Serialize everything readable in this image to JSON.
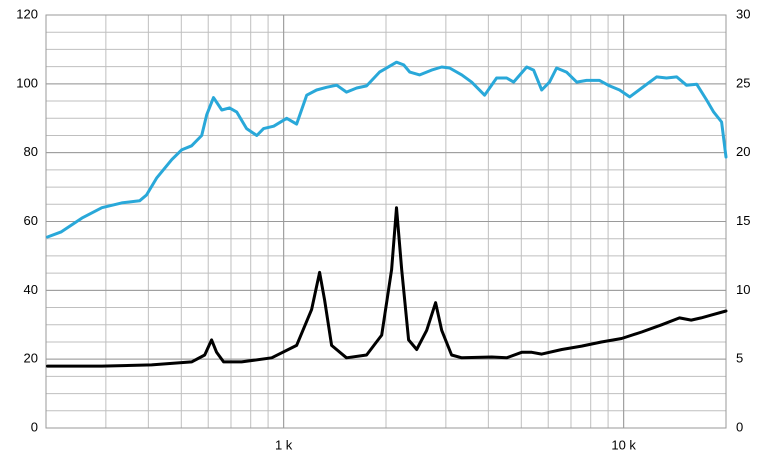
{
  "chart_data": {
    "type": "line",
    "xlog": true,
    "grid": true,
    "y_minor_step": 5,
    "xlim": [
      200,
      20000
    ],
    "xticks": [
      {
        "value": 1000,
        "label": "1 k"
      },
      {
        "value": 10000,
        "label": "10 k"
      }
    ],
    "ylim": [
      0,
      120
    ],
    "yticks": [
      0,
      20,
      40,
      60,
      80,
      100,
      120
    ],
    "y2lim": [
      0,
      30
    ],
    "y2ticks": [
      0,
      5,
      10,
      15,
      20,
      25,
      30
    ],
    "series": [
      {
        "color": "#29a8d9",
        "axis": "y",
        "x": [
          202,
          222,
          255,
          292,
          334,
          377,
          395,
          423,
          469,
          501,
          536,
          574,
          594,
          622,
          658,
          693,
          728,
          778,
          834,
          873,
          935,
          1021,
          1092,
          1169,
          1250,
          1337,
          1432,
          1531,
          1640,
          1754,
          1914,
          2148,
          2254,
          2350,
          2512,
          2723,
          2917,
          3076,
          3342,
          3572,
          3899,
          4229,
          4529,
          4745,
          5186,
          5433,
          5741,
          6053,
          6351,
          6792,
          7278,
          7780,
          8492,
          9095,
          9727,
          10420,
          11300,
          12500,
          13370,
          14320,
          15310,
          16400,
          17540,
          18400,
          19410,
          20000
        ],
        "values": [
          55.5,
          57,
          61,
          64,
          65.4,
          66,
          67.7,
          72.6,
          78,
          80.8,
          82,
          85,
          91,
          96,
          92.4,
          93,
          91.8,
          87,
          85,
          87,
          87.7,
          90,
          88.3,
          96.7,
          98.2,
          99,
          99.6,
          97.6,
          98.8,
          99.4,
          103.4,
          106.3,
          105.5,
          103.4,
          102.6,
          104,
          104.9,
          104.6,
          102.6,
          100.5,
          96.7,
          101.7,
          101.7,
          100.5,
          104.9,
          104,
          98.2,
          100.5,
          104.6,
          103.4,
          100.5,
          101,
          101,
          99.4,
          98.2,
          96.2,
          98.8,
          102,
          101.7,
          102,
          99.6,
          99.9,
          95.3,
          91.8,
          88.9,
          78.7
        ]
      },
      {
        "color": "#000000",
        "axis": "y2",
        "x": [
          202,
          292,
          409,
          536,
          586,
          614,
          635,
          666,
          752,
          922,
          1092,
          1208,
          1276,
          1320,
          1384,
          1531,
          1754,
          1942,
          2078,
          2148,
          2224,
          2330,
          2462,
          2634,
          2799,
          2917,
          3118,
          3342,
          4091,
          4529,
          5012,
          5367,
          5741,
          6577,
          7520,
          8600,
          9860,
          11300,
          12930,
          14600,
          15800,
          16900,
          18100,
          20000
        ],
        "values": [
          4.5,
          4.5,
          4.58,
          4.8,
          5.3,
          6.4,
          5.5,
          4.8,
          4.8,
          5.1,
          6.0,
          8.6,
          11.3,
          9.3,
          6.0,
          5.1,
          5.3,
          6.75,
          11.5,
          16,
          11.5,
          6.4,
          5.7,
          7.1,
          9.1,
          7.1,
          5.3,
          5.1,
          5.16,
          5.1,
          5.5,
          5.5,
          5.37,
          5.7,
          5.95,
          6.25,
          6.5,
          6.97,
          7.5,
          8.0,
          7.84,
          8.0,
          8.2,
          8.5
        ]
      }
    ]
  }
}
